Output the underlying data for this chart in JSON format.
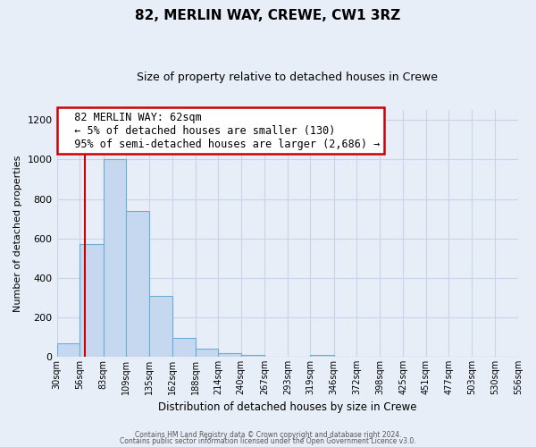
{
  "title": "82, MERLIN WAY, CREWE, CW1 3RZ",
  "subtitle": "Size of property relative to detached houses in Crewe",
  "xlabel": "Distribution of detached houses by size in Crewe",
  "ylabel": "Number of detached properties",
  "bar_color": "#c5d8f0",
  "bar_edge_color": "#6aaed6",
  "background_color": "#e8eef8",
  "grid_color": "#d0d8e8",
  "bin_edges": [
    30,
    56,
    83,
    109,
    135,
    162,
    188,
    214,
    240,
    267,
    293,
    319,
    346,
    372,
    398,
    425,
    451,
    477,
    503,
    530,
    556
  ],
  "bar_heights": [
    67,
    570,
    1000,
    740,
    310,
    95,
    40,
    20,
    10,
    0,
    0,
    8,
    0,
    0,
    0,
    0,
    0,
    0,
    0,
    0
  ],
  "tick_labels": [
    "30sqm",
    "56sqm",
    "83sqm",
    "109sqm",
    "135sqm",
    "162sqm",
    "188sqm",
    "214sqm",
    "240sqm",
    "267sqm",
    "293sqm",
    "319sqm",
    "346sqm",
    "372sqm",
    "398sqm",
    "425sqm",
    "451sqm",
    "477sqm",
    "503sqm",
    "530sqm",
    "556sqm"
  ],
  "ylim": [
    0,
    1250
  ],
  "yticks": [
    0,
    200,
    400,
    600,
    800,
    1000,
    1200
  ],
  "property_line_x": 62,
  "property_line_color": "#cc0000",
  "annotation_text_line1": "82 MERLIN WAY: 62sqm",
  "annotation_text_line2": "← 5% of detached houses are smaller (130)",
  "annotation_text_line3": "95% of semi-detached houses are larger (2,686) →",
  "footer_line1": "Contains HM Land Registry data © Crown copyright and database right 2024.",
  "footer_line2": "Contains public sector information licensed under the Open Government Licence v3.0."
}
